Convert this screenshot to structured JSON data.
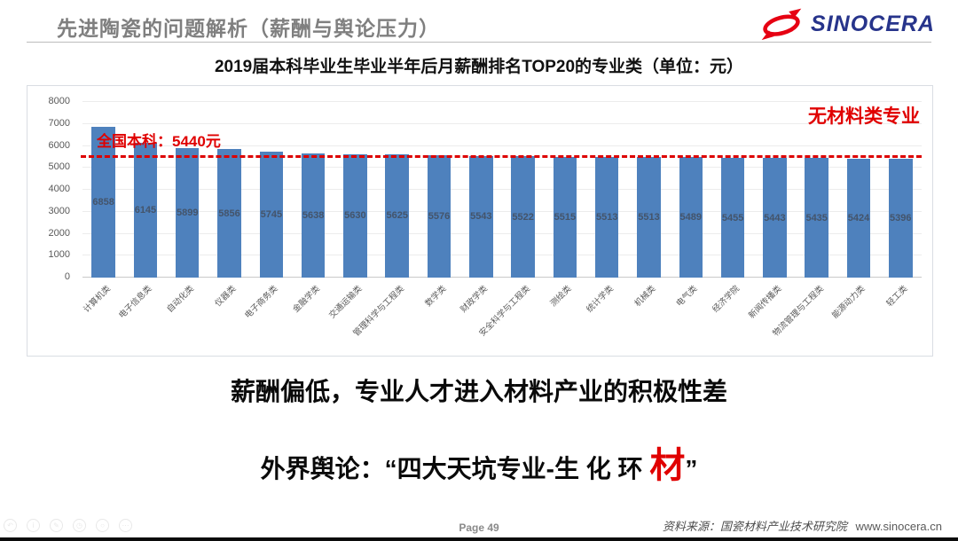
{
  "header": {
    "title": "先进陶瓷的问题解析（薪酬与舆论压力）",
    "logo_text": "SINOCERA"
  },
  "chart": {
    "benchmark_label": "全国本科：5440元",
    "annotation": "无材料类专业"
  },
  "chart_data": {
    "type": "bar",
    "title": "2019届本科毕业生毕业半年后月薪酬排名TOP20的专业类（单位：元）",
    "categories": [
      "计算机类",
      "电子信息类",
      "自动化类",
      "仪器类",
      "电子商务类",
      "金融学类",
      "交通运输类",
      "管理科学与工程类",
      "数学类",
      "财政学类",
      "安全科学与工程类",
      "测绘类",
      "统计学类",
      "机械类",
      "电气类",
      "经济学院",
      "新闻传播类",
      "物流管理与工程类",
      "能源动力类",
      "轻工类"
    ],
    "values": [
      6858,
      6145,
      5899,
      5856,
      5745,
      5638,
      5630,
      5625,
      5576,
      5543,
      5522,
      5515,
      5513,
      5513,
      5489,
      5455,
      5443,
      5435,
      5424,
      5396
    ],
    "xlabel": "",
    "ylabel": "",
    "ylim": [
      0,
      8000
    ],
    "ytick_step": 1000,
    "grid": true,
    "legend": "none",
    "bar_color": "#4E81BD",
    "benchmark": {
      "label": "全国本科：5440元",
      "value": 5440,
      "color": "#DD0000",
      "style": "dashed"
    },
    "annotation": {
      "text": "无材料类专业",
      "position": "top-right",
      "color": "#E00000"
    }
  },
  "statements": {
    "line1": "薪酬偏低，专业人才进入材料产业的积极性差",
    "line2_prefix": "外界舆论：“四大天坑专业-生 化 环 ",
    "line2_highlight": "材",
    "line2_suffix": "”"
  },
  "footer": {
    "page": "Page 49",
    "source": "资料来源：国瓷材料产业技术研究院",
    "website": "www.sinocera.cn",
    "ghost_icons": [
      {
        "name": "back-icon",
        "glyph": "↶"
      },
      {
        "name": "info-icon",
        "glyph": "i"
      },
      {
        "name": "pen-icon",
        "glyph": "✎"
      },
      {
        "name": "clock-icon",
        "glyph": "◷"
      },
      {
        "name": "search-icon",
        "glyph": "○"
      },
      {
        "name": "more-icon",
        "glyph": "⋯"
      }
    ]
  },
  "colors": {
    "accent_red": "#E00000",
    "bar_blue": "#4E81BD",
    "logo_blue": "#27348B",
    "logo_red": "#E60012"
  }
}
